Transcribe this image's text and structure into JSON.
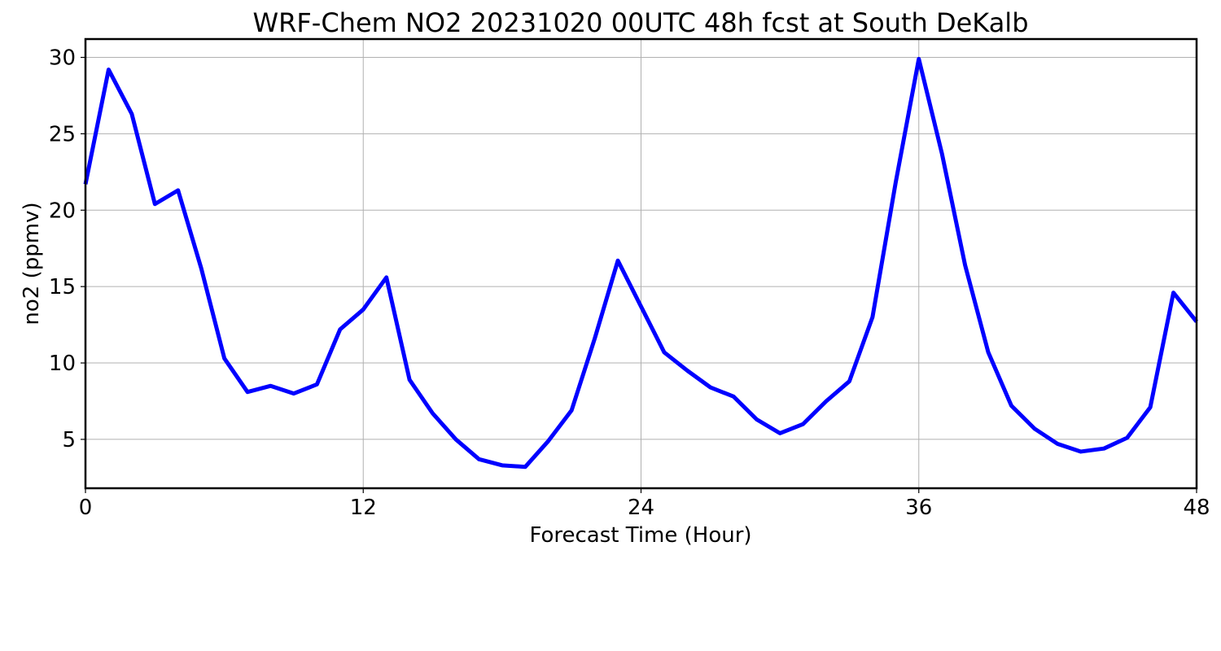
{
  "chart_data": {
    "type": "line",
    "title": "WRF-Chem NO2  20231020 00UTC 48h fcst at South DeKalb",
    "xlabel": "Forecast Time (Hour)",
    "ylabel": "no2  (ppmv)",
    "xlim": [
      0,
      48
    ],
    "ylim": [
      1.8,
      31.2
    ],
    "xticks": [
      0,
      12,
      24,
      36,
      48
    ],
    "yticks": [
      5,
      10,
      15,
      20,
      25,
      30
    ],
    "grid": true,
    "legend": "none",
    "series": [
      {
        "color": "#0000ff",
        "x": [
          0,
          1,
          2,
          3,
          4,
          5,
          6,
          7,
          8,
          9,
          10,
          11,
          12,
          13,
          14,
          15,
          16,
          17,
          18,
          19,
          20,
          21,
          22,
          23,
          24,
          25,
          26,
          27,
          28,
          29,
          30,
          31,
          32,
          33,
          34,
          35,
          36,
          37,
          38,
          39,
          40,
          41,
          42,
          43,
          44,
          45,
          46,
          47,
          48
        ],
        "y": [
          21.7,
          29.2,
          26.3,
          20.4,
          21.3,
          16.2,
          10.3,
          8.1,
          8.5,
          8.0,
          8.6,
          12.2,
          13.5,
          15.6,
          8.9,
          6.7,
          5.0,
          3.7,
          3.3,
          3.2,
          4.9,
          6.9,
          11.6,
          16.7,
          13.7,
          10.7,
          9.5,
          8.4,
          7.8,
          6.3,
          5.4,
          6.0,
          7.5,
          8.8,
          13.0,
          21.8,
          29.9,
          23.7,
          16.4,
          10.7,
          7.2,
          5.7,
          4.7,
          4.2,
          4.4,
          5.1,
          7.1,
          14.6,
          12.7
        ]
      }
    ]
  }
}
